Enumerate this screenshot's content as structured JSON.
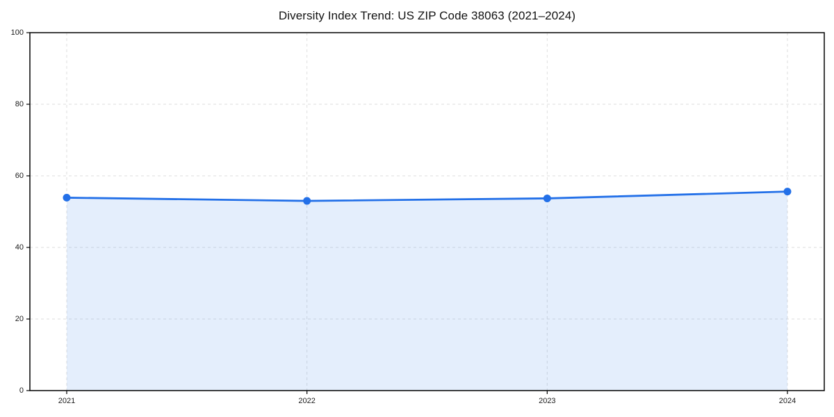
{
  "chart_data": {
    "type": "area",
    "title": "Diversity Index Trend: US ZIP Code 38063 (2021–2024)",
    "categories": [
      "2021",
      "2022",
      "2023",
      "2024"
    ],
    "series": [
      {
        "name": "Diversity Index",
        "values": [
          53.9,
          53.0,
          53.7,
          55.6
        ]
      }
    ],
    "xlabel": "",
    "ylabel": "",
    "ylim": [
      0,
      100
    ],
    "yticks": [
      0,
      20,
      40,
      60,
      80,
      100
    ],
    "grid": {
      "horizontal": true,
      "vertical": true,
      "style": "dashed"
    },
    "legend_position": "none",
    "colors": {
      "line": "#2370e8",
      "marker": "#2370e8",
      "fill": "rgba(37,112,232,0.12)",
      "grid": "#dedede",
      "spine": "#000000",
      "tick_label": "#1a1a1a",
      "title": "#111111",
      "background": "#ffffff"
    },
    "marker": "circle"
  }
}
